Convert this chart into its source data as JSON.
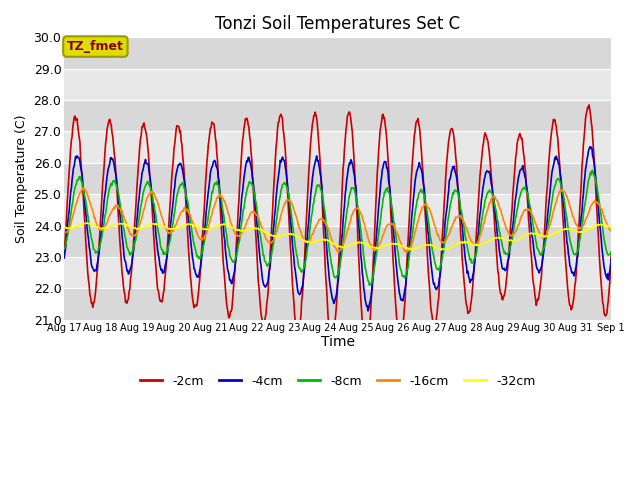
{
  "title": "Tonzi Soil Temperatures Set C",
  "xlabel": "Time",
  "ylabel": "Soil Temperature (C)",
  "ylim": [
    21.0,
    30.0
  ],
  "yticks": [
    21.0,
    22.0,
    23.0,
    24.0,
    25.0,
    26.0,
    27.0,
    28.0,
    29.0,
    30.0
  ],
  "xtick_labels": [
    "Aug 17",
    "Aug 18",
    "Aug 19",
    "Aug 20",
    "Aug 21",
    "Aug 22",
    "Aug 23",
    "Aug 24",
    "Aug 25",
    "Aug 26",
    "Aug 27",
    "Aug 28",
    "Aug 29",
    "Aug 30",
    "Aug 31",
    "Sep 1"
  ],
  "series_colors": [
    "#cc0000",
    "#0000cc",
    "#00bb00",
    "#ff8800",
    "#ffff00"
  ],
  "series_labels": [
    "-2cm",
    "-4cm",
    "-8cm",
    "-16cm",
    "-32cm"
  ],
  "legend_label": "TZ_fmet",
  "title_fontsize": 12,
  "annotation_box_facecolor": "#dddd00",
  "annotation_box_edgecolor": "#999900",
  "annotation_text_color": "#880000",
  "band_colors": [
    "#d8d8d8",
    "#e8e8e8"
  ],
  "grid_color": "#cccccc"
}
